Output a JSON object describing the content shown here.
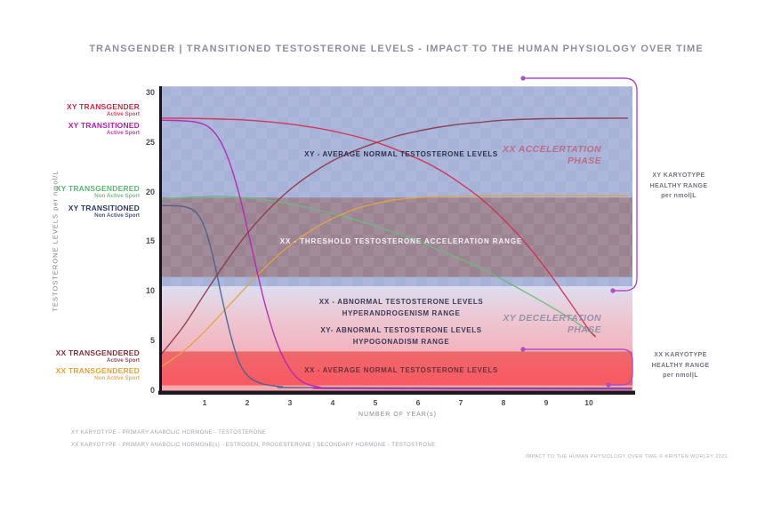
{
  "title": "TRANSGENDER | TRANSITIONED TESTOSTERONE LEVELS - IMPACT TO THE HUMAN PHYSIOLOGY OVER TIME",
  "y_axis": {
    "title": "TESTOSTERONE LEVELS   per nmol/L",
    "ticks": [
      "30",
      "25",
      "20",
      "15",
      "10",
      "5",
      "0"
    ]
  },
  "x_axis": {
    "title": "NUMBER OF YEAR(s)",
    "ticks": [
      "1",
      "2",
      "3",
      "4",
      "5",
      "6",
      "7",
      "8",
      "9",
      "10"
    ]
  },
  "legend": [
    {
      "label": "XY TRANSGENDER",
      "sublabel": "Active Sport",
      "color": "#c92a44"
    },
    {
      "label": "XY TRANSITIONED",
      "sublabel": "Active Sport",
      "color": "#ae22ae"
    },
    {
      "label": "XY TRANSGENDERED",
      "sublabel": "Non Active Sport",
      "color": "#5bb672"
    },
    {
      "label": "XY TRANSITIONED",
      "sublabel": "Non Active Sport",
      "color": "#2c3a66"
    },
    {
      "label": "XX TRANSGENDERED",
      "sublabel": "Active Sport",
      "color": "#7e3240"
    },
    {
      "label": "XX TRANSGENDERED",
      "sublabel": "Non Active Sport",
      "color": "#e2a23e"
    }
  ],
  "plot_labels": {
    "xy_avg_normal": "XY - AVERAGE NORMAL TESTOSTERONE LEVELS",
    "xx_acceleration_line1": "XX ACCELERTATION",
    "xx_acceleration_line2": "PHASE",
    "threshold": "XX - THRESHOLD TESTOSTERONE ACCELERATION RANGE",
    "xx_abnormal_line1": "XX - ABNORMAL TESTOSTERONE LEVELS",
    "xx_abnormal_line2": "HYPERANDROGENISM RANGE",
    "xy_abnormal_line1": "XY- ABNORMAL TESTOSTERONE LEVELS",
    "xy_abnormal_line2": "HYPOGONADISM RANGE",
    "xy_deceleration_line1": "XY DECELERTATION",
    "xy_deceleration_line2": "PHASE",
    "xx_avg_normal": "XX - AVERAGE NORMAL TESTOSTERONE LEVELS"
  },
  "annotations": {
    "xy_karyotype": {
      "line1": "XY KARYOTYPE",
      "line2": "HEALTHY RANGE",
      "line3": "per nmol|L"
    },
    "xx_karyotype": {
      "line1": "XX KARYOTYPE",
      "line2": "HEALTHY RANGE",
      "line3": "per nmol|L"
    },
    "bracket_color": "#ab4fc6"
  },
  "footnotes": [
    "XY KARYOTYPE - PRIMARY ANABOLIC HORMONE - TESTOSTERONE",
    "XX KARYOTYPE - PRIMARY ANABOLIC HORMONE(s) - ESTROGEN, PROGESTERONE | SECONDARY HORMONE - TESTOSTRONE"
  ],
  "footer": "IMPACT TO THE HUMAN PHYSIOLOGY OVER TIME   ©  KRISTEN WORLEY 2021",
  "chart_data": {
    "type": "line",
    "title": "TRANSGENDER | TRANSITIONED TESTOSTERONE LEVELS - IMPACT TO THE HUMAN PHYSIOLOGY OVER TIME",
    "xlabel": "NUMBER OF YEAR(s)",
    "ylabel": "TESTOSTERONE LEVELS per nmol/L",
    "xlim": [
      0,
      11
    ],
    "ylim": [
      0,
      30
    ],
    "x_ticks": [
      1,
      2,
      3,
      4,
      5,
      6,
      7,
      8,
      9,
      10
    ],
    "y_ticks": [
      0,
      5,
      10,
      15,
      20,
      25,
      30
    ],
    "grid": false,
    "legend_position": "left-margin",
    "healthy_ranges": [
      {
        "karyotype": "XY",
        "from": 10.5,
        "to": 30
      },
      {
        "karyotype": "XX",
        "from": 0.5,
        "to": 4
      }
    ],
    "zones": [
      {
        "name": "xy-range-background",
        "from": 30.7,
        "to": 10.55,
        "fill": "blue"
      },
      {
        "name": "threshold-acceleration-band",
        "from": 19.5,
        "to": 11.5,
        "fill": "threshold"
      },
      {
        "name": "abnormal-levels-gradient",
        "from": 10.55,
        "to": 4.0,
        "fill": "pink"
      },
      {
        "name": "xx-average-normal-band",
        "from": 4.0,
        "to": 0.55,
        "fill": "red"
      },
      {
        "name": "baseline-strip",
        "from": 0.55,
        "to": 0,
        "fill": "pale"
      }
    ],
    "series": [
      {
        "name": "XY TRANSGENDERED - Non Active Sport",
        "color": "#6ab97c",
        "points": [
          [
            0,
            19.3
          ],
          [
            0.5,
            19.5
          ],
          [
            1.5,
            19.6
          ],
          [
            2.5,
            19.2
          ],
          [
            3.5,
            18.4
          ],
          [
            4.5,
            17.3
          ],
          [
            5.5,
            15.9
          ],
          [
            6.5,
            14.2
          ],
          [
            7.5,
            12.3
          ],
          [
            8.5,
            10
          ],
          [
            9.5,
            7.5
          ],
          [
            10.15,
            5.6
          ]
        ]
      },
      {
        "name": "XX TRANSGENDERED - Non Active Sport",
        "color": "#e3a344",
        "points": [
          [
            0,
            2.5
          ],
          [
            0.5,
            4
          ],
          [
            1,
            6
          ],
          [
            1.5,
            8.3
          ],
          [
            2,
            10.6
          ],
          [
            2.5,
            12.8
          ],
          [
            3,
            14.7
          ],
          [
            3.5,
            16.2
          ],
          [
            4,
            17.4
          ],
          [
            4.5,
            18.3
          ],
          [
            5,
            18.9
          ],
          [
            5.5,
            19.3
          ],
          [
            6,
            19.5
          ],
          [
            7,
            19.65
          ],
          [
            8,
            19.7
          ],
          [
            10.9,
            19.7
          ]
        ]
      },
      {
        "name": "XY TRANSITIONED - Non Active Sport",
        "color": "#47608f",
        "points": [
          [
            0,
            18.7
          ],
          [
            0.5,
            18.6
          ],
          [
            0.8,
            18
          ],
          [
            1,
            16.5
          ],
          [
            1.2,
            13.5
          ],
          [
            1.4,
            9.5
          ],
          [
            1.6,
            5.8
          ],
          [
            1.8,
            3
          ],
          [
            2,
            1.6
          ],
          [
            2.3,
            0.8
          ],
          [
            2.8,
            0.45
          ],
          [
            3.5,
            0.35
          ],
          [
            11,
            0.3
          ]
        ]
      },
      {
        "name": "XY TRANSITIONED - Active Sport",
        "color": "#b424b4",
        "points": [
          [
            0,
            27.3
          ],
          [
            0.8,
            27.1
          ],
          [
            1.2,
            26.2
          ],
          [
            1.5,
            24
          ],
          [
            1.8,
            20
          ],
          [
            2.1,
            14.5
          ],
          [
            2.4,
            9
          ],
          [
            2.7,
            4.8
          ],
          [
            3,
            2.2
          ],
          [
            3.3,
            0.9
          ],
          [
            3.7,
            0.4
          ],
          [
            4.2,
            0.25
          ],
          [
            11,
            0.2
          ]
        ]
      },
      {
        "name": "XX TRANSGENDERED - Active Sport",
        "color": "#8a3a48",
        "points": [
          [
            0,
            3.8
          ],
          [
            0.5,
            6.5
          ],
          [
            1,
            9.8
          ],
          [
            1.5,
            13
          ],
          [
            2,
            15.9
          ],
          [
            2.5,
            18.3
          ],
          [
            3,
            20.3
          ],
          [
            3.5,
            21.9
          ],
          [
            4,
            23.2
          ],
          [
            4.5,
            24.2
          ],
          [
            5,
            25
          ],
          [
            5.5,
            25.7
          ],
          [
            6,
            26.2
          ],
          [
            6.5,
            26.6
          ],
          [
            7,
            26.9
          ],
          [
            7.5,
            27.1
          ],
          [
            8,
            27.3
          ],
          [
            9,
            27.45
          ],
          [
            10.9,
            27.5
          ]
        ]
      },
      {
        "name": "XY TRANSGENDER - Active Sport",
        "color": "#d03050",
        "points": [
          [
            0,
            27.5
          ],
          [
            1,
            27.45
          ],
          [
            2,
            27.3
          ],
          [
            3,
            26.9
          ],
          [
            4,
            26.2
          ],
          [
            5,
            25.1
          ],
          [
            6,
            23.4
          ],
          [
            6.5,
            22.3
          ],
          [
            7,
            20.9
          ],
          [
            7.5,
            19.3
          ],
          [
            8,
            17.3
          ],
          [
            8.5,
            15
          ],
          [
            9,
            12.3
          ],
          [
            9.5,
            9.3
          ],
          [
            10,
            6.2
          ],
          [
            10.15,
            5.5
          ]
        ]
      }
    ]
  }
}
